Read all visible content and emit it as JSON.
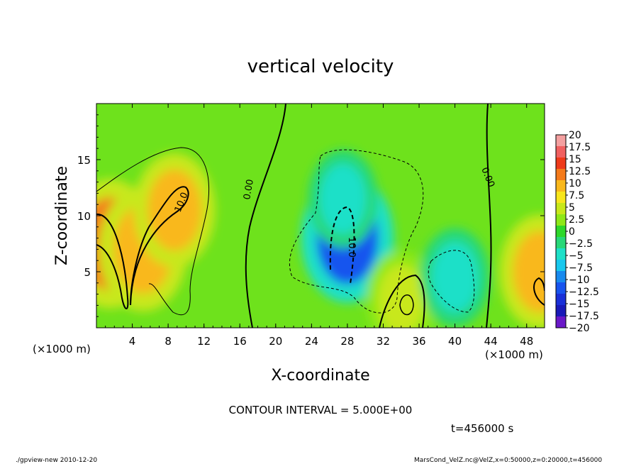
{
  "chart_data": {
    "type": "heatmap",
    "title": "vertical velocity",
    "xlabel": "X-coordinate",
    "ylabel": "Z-coordinate",
    "x_unit_left": "(×1000 m)",
    "x_unit_right": "(×1000 m)",
    "xlim": [
      0,
      50
    ],
    "ylim": [
      0,
      20
    ],
    "x_ticks": [
      "4",
      "8",
      "12",
      "16",
      "20",
      "24",
      "28",
      "32",
      "36",
      "40",
      "44",
      "48"
    ],
    "x_tick_values": [
      4,
      8,
      12,
      16,
      20,
      24,
      28,
      32,
      36,
      40,
      44,
      48
    ],
    "y_ticks": [
      "5",
      "10",
      "15"
    ],
    "y_tick_values": [
      5,
      10,
      15
    ],
    "colorbar": {
      "labels": [
        "20",
        "17.5",
        "15",
        "12.5",
        "10",
        "7.5",
        "5",
        "2.5",
        "0",
        "−2.5",
        "−5",
        "−7.5",
        "−10",
        "−12.5",
        "−15",
        "−17.5",
        "−20"
      ],
      "colors": [
        "#f4a0a0",
        "#f06060",
        "#ee3a1a",
        "#f47a1a",
        "#f9b81c",
        "#f8e61c",
        "#c8e81a",
        "#8ee818",
        "#2ed82a",
        "#28d878",
        "#1ee0c8",
        "#18c8ee",
        "#188aee",
        "#1854ee",
        "#1a30d8",
        "#1a1ab8",
        "#6a18c8"
      ]
    },
    "contour_interval": "CONTOUR INTERVAL = 5.000E+00",
    "contour_labels": [
      "10.0",
      "0.00",
      "0.00",
      "10.0",
      "0.00"
    ],
    "features": [
      {
        "x": 1.5,
        "z": 7.5,
        "w": 12
      },
      {
        "x": 5.2,
        "z": 7.0,
        "w": 11
      },
      {
        "x": 8.7,
        "z": 10.5,
        "w": 9
      },
      {
        "x": 28.0,
        "z": 8.0,
        "w": -12
      },
      {
        "x": 27.5,
        "z": 11.5,
        "w": -6
      },
      {
        "x": 34.0,
        "z": 2.5,
        "w": 6
      },
      {
        "x": 40.0,
        "z": 4.5,
        "w": -6
      },
      {
        "x": 49.5,
        "z": 5.0,
        "w": 9
      }
    ]
  },
  "annotations": {
    "time": "t=456000 s",
    "footer_left": "./gpview-new   2010-12-20",
    "footer_right": "MarsCond_VelZ.nc@VelZ,x=0:50000,z=0:20000,t=456000"
  }
}
